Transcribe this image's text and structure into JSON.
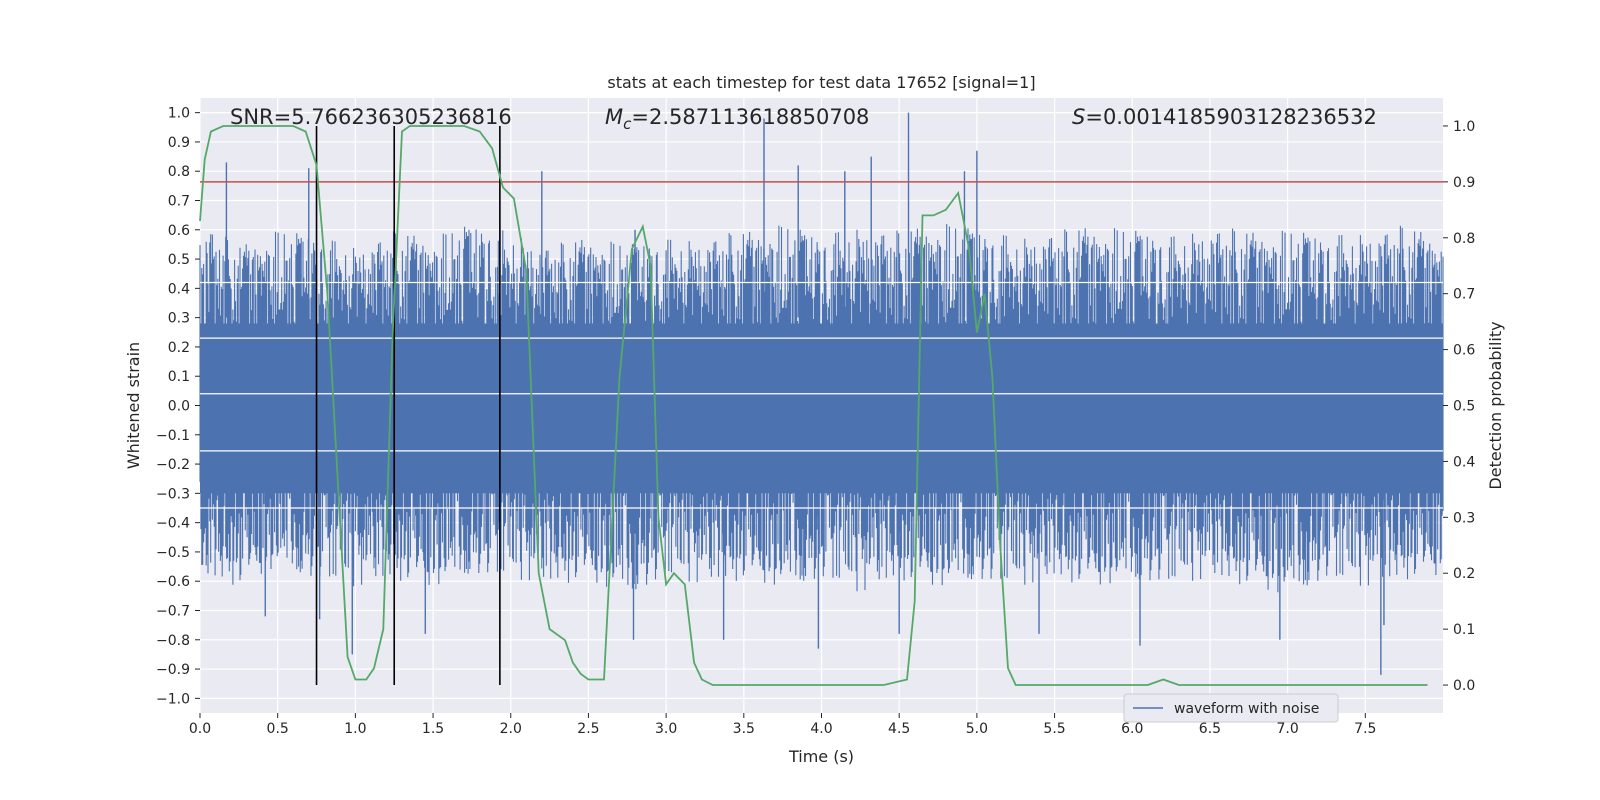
{
  "chart_data": {
    "type": "line",
    "title": "stats at each timestep for test data 17652 [signal=1]",
    "xlabel": "Time (s)",
    "ylabel": "Whitened strain",
    "y2label": "Detection probability",
    "xlim": [
      0,
      8.0
    ],
    "ylim": [
      -1.05,
      1.05
    ],
    "y2lim": [
      -0.05,
      1.05
    ],
    "x_ticks": [
      0.0,
      0.5,
      1.0,
      1.5,
      2.0,
      2.5,
      3.0,
      3.5,
      4.0,
      4.5,
      5.0,
      5.5,
      6.0,
      6.5,
      7.0,
      7.5
    ],
    "x_tick_labels": [
      "0.0",
      "0.5",
      "1.0",
      "1.5",
      "2.0",
      "2.5",
      "3.0",
      "3.5",
      "4.0",
      "4.5",
      "5.0",
      "5.5",
      "6.0",
      "6.5",
      "7.0",
      "7.5"
    ],
    "y_ticks": [
      -1.0,
      -0.9,
      -0.8,
      -0.7,
      -0.6,
      -0.5,
      -0.4,
      -0.3,
      -0.2,
      -0.1,
      0.0,
      0.1,
      0.2,
      0.3,
      0.4,
      0.5,
      0.6,
      0.7,
      0.8,
      0.9,
      1.0
    ],
    "y_tick_labels": [
      "−1.0",
      "−0.9",
      "−0.8",
      "−0.7",
      "−0.6",
      "−0.5",
      "−0.4",
      "−0.3",
      "−0.2",
      "−0.1",
      "0.0",
      "0.1",
      "0.2",
      "0.3",
      "0.4",
      "0.5",
      "0.6",
      "0.7",
      "0.8",
      "0.9",
      "1.0"
    ],
    "y2_ticks": [
      0.0,
      0.1,
      0.2,
      0.3,
      0.4,
      0.5,
      0.6,
      0.7,
      0.8,
      0.9,
      1.0
    ],
    "y2_tick_labels": [
      "0.0",
      "0.1",
      "0.2",
      "0.3",
      "0.4",
      "0.5",
      "0.6",
      "0.7",
      "0.8",
      "0.9",
      "1.0"
    ],
    "grid": true,
    "legend_position": "lower-right",
    "annotations": {
      "snr": "SNR=5.766236305236816",
      "mc_symbol": "M",
      "mc_sub": "c",
      "mc_value": "=2.587113618850708",
      "s_symbol": "S",
      "s_value": "=0.0014185903128236532"
    },
    "series": [
      {
        "name": "waveform with noise",
        "color": "#4c72b0",
        "axis": "left",
        "envelope_upper": [
          [
            0.0,
            0.64
          ],
          [
            0.25,
            0.55
          ],
          [
            0.5,
            0.6
          ],
          [
            0.75,
            0.58
          ],
          [
            1.0,
            0.55
          ],
          [
            1.25,
            0.6
          ],
          [
            1.5,
            0.58
          ],
          [
            1.75,
            0.62
          ],
          [
            2.0,
            0.6
          ],
          [
            2.25,
            0.55
          ],
          [
            2.5,
            0.58
          ],
          [
            2.75,
            0.55
          ],
          [
            3.0,
            0.57
          ],
          [
            3.25,
            0.58
          ],
          [
            3.5,
            0.6
          ],
          [
            3.75,
            0.62
          ],
          [
            4.0,
            0.58
          ],
          [
            4.25,
            0.62
          ],
          [
            4.5,
            0.6
          ],
          [
            4.75,
            0.63
          ],
          [
            5.0,
            0.6
          ],
          [
            5.25,
            0.58
          ],
          [
            5.5,
            0.6
          ],
          [
            5.75,
            0.62
          ],
          [
            6.0,
            0.6
          ],
          [
            6.25,
            0.58
          ],
          [
            6.5,
            0.62
          ],
          [
            6.75,
            0.6
          ],
          [
            7.0,
            0.6
          ],
          [
            7.25,
            0.58
          ],
          [
            7.5,
            0.6
          ],
          [
            7.75,
            0.62
          ],
          [
            8.0,
            0.58
          ]
        ],
        "envelope_lower": [
          [
            0.0,
            -0.6
          ],
          [
            0.25,
            -0.62
          ],
          [
            0.5,
            -0.55
          ],
          [
            0.75,
            -0.6
          ],
          [
            1.0,
            -0.63
          ],
          [
            1.25,
            -0.6
          ],
          [
            1.5,
            -0.62
          ],
          [
            1.75,
            -0.58
          ],
          [
            2.0,
            -0.6
          ],
          [
            2.25,
            -0.62
          ],
          [
            2.5,
            -0.6
          ],
          [
            2.75,
            -0.65
          ],
          [
            3.0,
            -0.6
          ],
          [
            3.25,
            -0.62
          ],
          [
            3.5,
            -0.6
          ],
          [
            3.75,
            -0.62
          ],
          [
            4.0,
            -0.6
          ],
          [
            4.25,
            -0.65
          ],
          [
            4.5,
            -0.6
          ],
          [
            4.75,
            -0.62
          ],
          [
            5.0,
            -0.6
          ],
          [
            5.25,
            -0.63
          ],
          [
            5.5,
            -0.6
          ],
          [
            5.75,
            -0.62
          ],
          [
            6.0,
            -0.6
          ],
          [
            6.25,
            -0.62
          ],
          [
            6.5,
            -0.6
          ],
          [
            6.75,
            -0.62
          ],
          [
            7.0,
            -0.65
          ],
          [
            7.25,
            -0.6
          ],
          [
            7.5,
            -0.63
          ],
          [
            7.75,
            -0.6
          ],
          [
            8.0,
            -0.58
          ]
        ],
        "spikes": [
          [
            0.17,
            0.83
          ],
          [
            0.7,
            0.81
          ],
          [
            0.42,
            -0.72
          ],
          [
            0.77,
            -0.73
          ],
          [
            0.98,
            -0.85
          ],
          [
            1.45,
            -0.78
          ],
          [
            2.2,
            0.8
          ],
          [
            2.8,
            0.6
          ],
          [
            2.79,
            -0.8
          ],
          [
            3.63,
            0.98
          ],
          [
            3.37,
            -0.8
          ],
          [
            3.85,
            0.82
          ],
          [
            3.98,
            -0.83
          ],
          [
            4.15,
            0.8
          ],
          [
            4.32,
            0.85
          ],
          [
            4.56,
            1.0
          ],
          [
            4.5,
            -0.78
          ],
          [
            4.92,
            0.8
          ],
          [
            5.0,
            0.87
          ],
          [
            5.4,
            -0.78
          ],
          [
            6.05,
            -0.82
          ],
          [
            6.95,
            -0.8
          ],
          [
            7.6,
            -0.92
          ],
          [
            7.62,
            -0.75
          ]
        ]
      },
      {
        "name": "",
        "color": "#55a868",
        "axis": "right",
        "x": [
          0.0,
          0.03,
          0.07,
          0.15,
          0.3,
          0.6,
          0.68,
          0.75,
          0.82,
          0.9,
          0.95,
          1.0,
          1.07,
          1.12,
          1.18,
          1.24,
          1.3,
          1.35,
          1.5,
          1.7,
          1.8,
          1.88,
          1.95,
          2.02,
          2.1,
          2.18,
          2.25,
          2.35,
          2.4,
          2.45,
          2.5,
          2.6,
          2.7,
          2.78,
          2.85,
          2.9,
          2.95,
          3.0,
          3.05,
          3.12,
          3.18,
          3.23,
          3.3,
          3.5,
          3.7,
          4.0,
          4.2,
          4.4,
          4.55,
          4.6,
          4.65,
          4.68,
          4.72,
          4.8,
          4.88,
          4.95,
          5.0,
          5.05,
          5.1,
          5.15,
          5.2,
          5.25,
          5.5,
          5.8,
          6.0,
          6.1,
          6.2,
          6.3,
          6.5,
          6.7,
          6.9,
          7.2,
          7.5,
          7.7,
          7.9
        ],
        "y": [
          0.83,
          0.94,
          0.99,
          1.0,
          1.0,
          1.0,
          0.99,
          0.93,
          0.7,
          0.3,
          0.05,
          0.01,
          0.01,
          0.03,
          0.1,
          0.63,
          0.99,
          1.0,
          1.0,
          1.0,
          0.99,
          0.96,
          0.89,
          0.87,
          0.74,
          0.2,
          0.1,
          0.08,
          0.04,
          0.02,
          0.01,
          0.01,
          0.55,
          0.78,
          0.82,
          0.75,
          0.3,
          0.18,
          0.2,
          0.18,
          0.04,
          0.01,
          0.0,
          0.0,
          0.0,
          0.0,
          0.0,
          0.0,
          0.01,
          0.15,
          0.84,
          0.84,
          0.84,
          0.85,
          0.88,
          0.78,
          0.63,
          0.7,
          0.55,
          0.25,
          0.03,
          0.0,
          0.0,
          0.0,
          0.0,
          0.0,
          0.01,
          0.0,
          0.0,
          0.0,
          0.0,
          0.0,
          0.0,
          0.0,
          0.0
        ]
      }
    ],
    "hlines": [
      {
        "y2": 0.9,
        "color": "#c44e52"
      }
    ],
    "vlines": [
      {
        "x": 0.75,
        "y2_from": 0.0,
        "y2_to": 1.0,
        "color": "#000000"
      },
      {
        "x": 1.25,
        "y2_from": 0.0,
        "y2_to": 1.0,
        "color": "#000000"
      },
      {
        "x": 1.93,
        "y2_from": 0.0,
        "y2_to": 1.0,
        "color": "#000000"
      }
    ]
  }
}
